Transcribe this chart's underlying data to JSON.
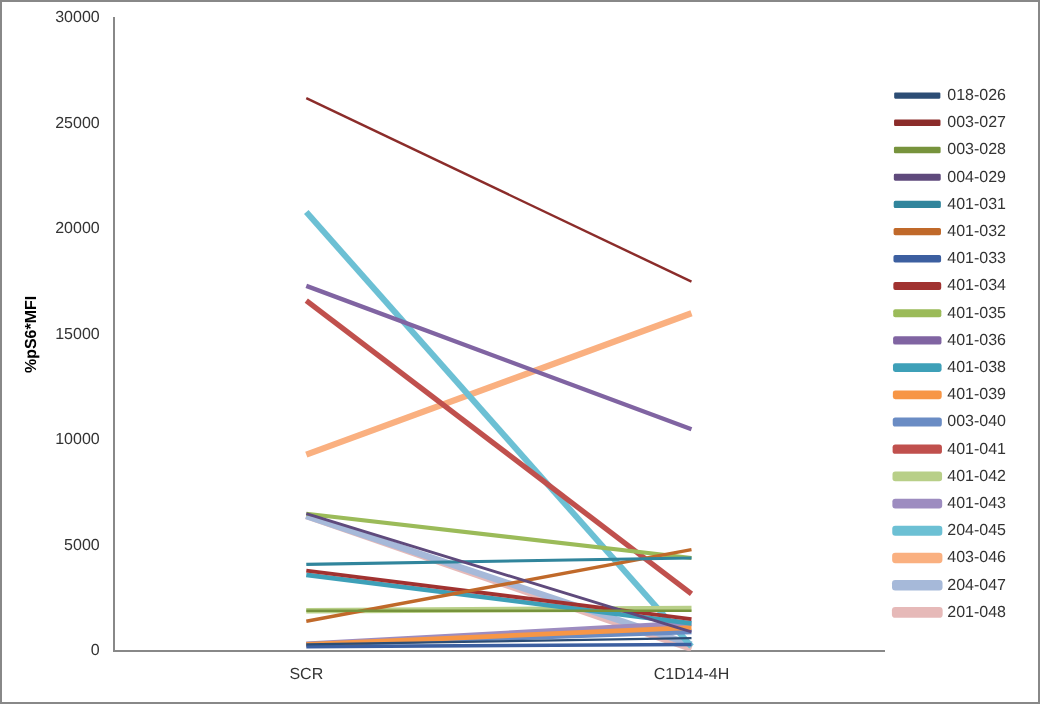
{
  "chart_data": {
    "type": "line",
    "ylabel": "%pS6*MFI",
    "categories": [
      "SCR",
      "C1D14-4H"
    ],
    "ylim": [
      0,
      30000
    ],
    "yticks": [
      0,
      5000,
      10000,
      15000,
      20000,
      25000,
      30000
    ],
    "grid": false,
    "legend": "right",
    "marker": "none",
    "line_style": "solid",
    "series": [
      {
        "name": "018-026",
        "color": "#2c4d75",
        "values": [
          300,
          600
        ]
      },
      {
        "name": "003-027",
        "color": "#8b2c2a",
        "values": [
          26200,
          17500
        ]
      },
      {
        "name": "003-028",
        "color": "#77933c",
        "values": [
          1900,
          1900
        ]
      },
      {
        "name": "004-029",
        "color": "#5f4a7c",
        "values": [
          6500,
          900
        ]
      },
      {
        "name": "401-031",
        "color": "#31859c",
        "values": [
          4100,
          4400
        ]
      },
      {
        "name": "401-032",
        "color": "#c0692a",
        "values": [
          1400,
          4800
        ]
      },
      {
        "name": "401-033",
        "color": "#3c5fa0",
        "values": [
          200,
          300
        ]
      },
      {
        "name": "401-034",
        "color": "#a03230",
        "values": [
          3800,
          1500
        ]
      },
      {
        "name": "401-035",
        "color": "#9bbb59",
        "values": [
          6500,
          4400
        ]
      },
      {
        "name": "401-036",
        "color": "#8064a2",
        "values": [
          17300,
          10500
        ]
      },
      {
        "name": "401-038",
        "color": "#3ea0b8",
        "values": [
          3600,
          1300
        ]
      },
      {
        "name": "401-039",
        "color": "#f79646",
        "values": [
          300,
          1100
        ]
      },
      {
        "name": "003-040",
        "color": "#6a8cc4",
        "values": [
          300,
          900
        ]
      },
      {
        "name": "401-041",
        "color": "#c0504d",
        "values": [
          16600,
          2700
        ]
      },
      {
        "name": "401-042",
        "color": "#b8cf88",
        "values": [
          1900,
          2000
        ]
      },
      {
        "name": "401-043",
        "color": "#9d8cc0",
        "values": [
          300,
          1300
        ]
      },
      {
        "name": "204-045",
        "color": "#6cc0d4",
        "values": [
          20800,
          200
        ]
      },
      {
        "name": "403-046",
        "color": "#fab080",
        "values": [
          9300,
          16000
        ]
      },
      {
        "name": "204-047",
        "color": "#a6b9d9",
        "values": [
          6400,
          300
        ]
      },
      {
        "name": "201-048",
        "color": "#e6b9b8",
        "values": [
          6400,
          100
        ]
      }
    ]
  }
}
